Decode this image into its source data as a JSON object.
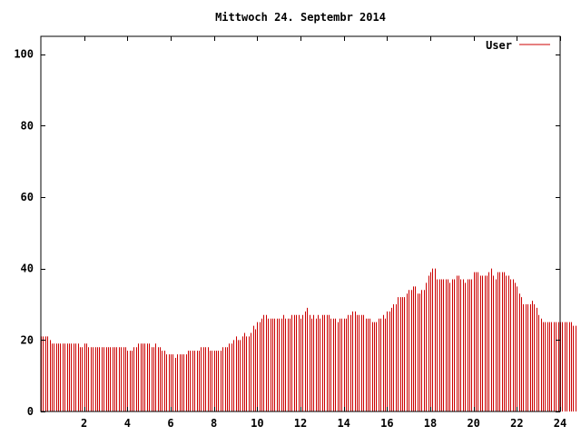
{
  "chart_data": {
    "type": "bar",
    "title": "Mittwoch 24. Septembr 2014",
    "xlabel": "",
    "ylabel": "",
    "xlim": [
      0,
      24
    ],
    "ylim": [
      0,
      105
    ],
    "x_ticks": [
      "2",
      "4",
      "6",
      "8",
      "10",
      "12",
      "14",
      "16",
      "18",
      "20",
      "22",
      "24"
    ],
    "y_ticks": [
      "0",
      "20",
      "40",
      "60",
      "80",
      "100"
    ],
    "grid": false,
    "legend_position": "top-right",
    "series": [
      {
        "name": "User",
        "color": "#cc0000",
        "interval_hours": 0.1,
        "values": [
          21,
          21,
          21,
          21,
          20,
          19,
          19,
          19,
          19,
          19,
          19,
          19,
          19,
          19,
          19,
          19,
          19,
          19,
          18,
          18,
          19,
          19,
          18,
          18,
          18,
          18,
          18,
          18,
          18,
          18,
          18,
          18,
          18,
          18,
          18,
          18,
          18,
          18,
          18,
          18,
          17,
          17,
          17,
          18,
          18,
          19,
          19,
          19,
          19,
          19,
          19,
          18,
          18,
          19,
          18,
          18,
          17,
          17,
          16,
          16,
          16,
          16,
          15,
          16,
          16,
          16,
          16,
          16,
          17,
          17,
          17,
          17,
          17,
          17,
          18,
          18,
          18,
          18,
          17,
          17,
          17,
          17,
          17,
          17,
          18,
          18,
          18,
          19,
          19,
          20,
          21,
          20,
          20,
          21,
          22,
          21,
          21,
          22,
          24,
          23,
          25,
          25,
          26,
          27,
          27,
          26,
          26,
          26,
          26,
          26,
          26,
          26,
          27,
          26,
          26,
          26,
          27,
          27,
          27,
          27,
          26,
          27,
          28,
          29,
          27,
          26,
          27,
          26,
          27,
          26,
          27,
          27,
          27,
          27,
          26,
          26,
          26,
          25,
          26,
          26,
          26,
          26,
          27,
          27,
          28,
          28,
          27,
          27,
          27,
          27,
          26,
          26,
          26,
          25,
          25,
          25,
          26,
          26,
          27,
          26,
          28,
          28,
          29,
          30,
          30,
          32,
          32,
          32,
          32,
          33,
          34,
          34,
          35,
          35,
          33,
          33,
          34,
          34,
          36,
          38,
          39,
          40,
          40,
          37,
          37,
          37,
          37,
          37,
          37,
          36,
          37,
          37,
          38,
          38,
          37,
          37,
          36,
          37,
          37,
          37,
          39,
          39,
          39,
          38,
          38,
          38,
          38,
          39,
          40,
          38,
          37,
          39,
          39,
          39,
          39,
          38,
          38,
          37,
          37,
          36,
          35,
          33,
          32,
          30,
          30,
          30,
          30,
          31,
          30,
          29,
          27,
          26,
          25,
          25,
          25,
          25,
          25,
          25,
          25,
          25,
          25,
          25,
          25,
          25,
          25,
          25,
          24,
          24
        ]
      }
    ]
  }
}
